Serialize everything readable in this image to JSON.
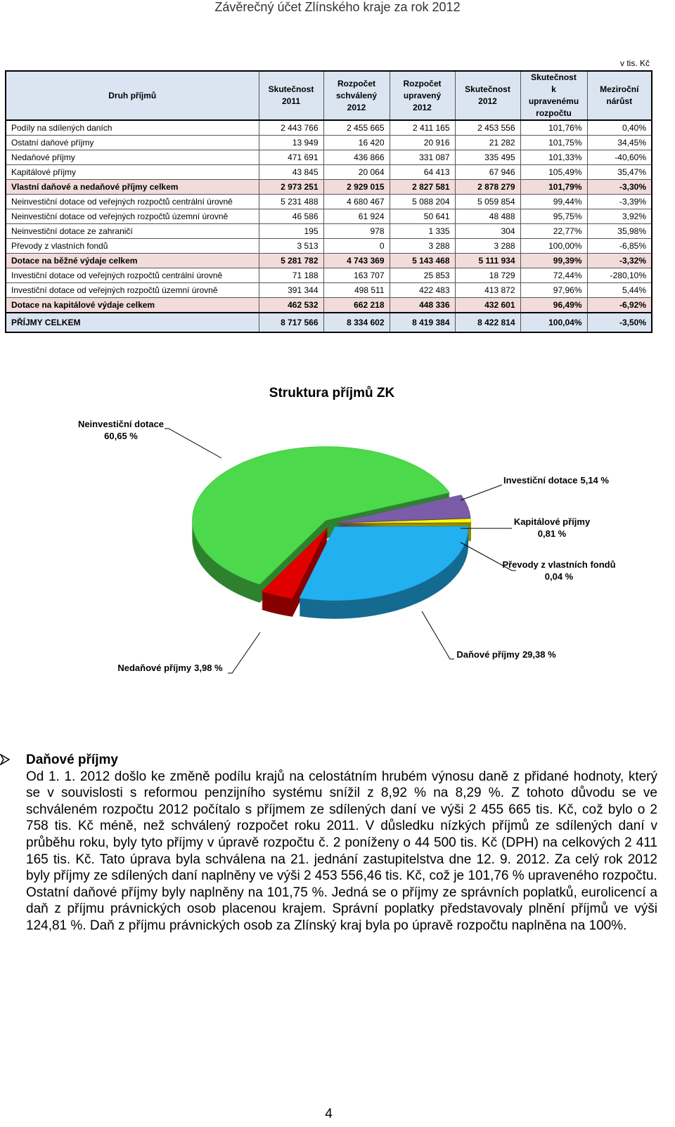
{
  "header": {
    "title": "Závěrečný účet Zlínského kraje za rok 2012"
  },
  "table": {
    "unit": "v tis. Kč",
    "columns": [
      "Druh příjmů",
      "Skutečnost\n2011",
      "Rozpočet\nschválený\n2012",
      "Rozpočet\nupravený\n2012",
      "Skutečnost\n2012",
      "Skutečnost\nk upravenému\nrozpočtu",
      "Meziroční\nnárůst"
    ],
    "rows": [
      {
        "kind": "item",
        "cells": [
          "Podíly na sdílených daních",
          "2 443 766",
          "2 455 665",
          "2 411 165",
          "2 453 556",
          "101,76%",
          "0,40%"
        ]
      },
      {
        "kind": "item",
        "cells": [
          "Ostatní daňové příjmy",
          "13 949",
          "16 420",
          "20 916",
          "21 282",
          "101,75%",
          "34,45%"
        ]
      },
      {
        "kind": "item",
        "cells": [
          "Nedaňové příjmy",
          "471 691",
          "436 866",
          "331 087",
          "335 495",
          "101,33%",
          "-40,60%"
        ]
      },
      {
        "kind": "item",
        "cells": [
          "Kapitálové příjmy",
          "43 845",
          "20 064",
          "64 413",
          "67 946",
          "105,49%",
          "35,47%"
        ]
      },
      {
        "kind": "subtotal",
        "cells": [
          "Vlastní daňové a nedaňové příjmy celkem",
          "2 973 251",
          "2 929 015",
          "2 827 581",
          "2 878 279",
          "101,79%",
          "-3,30%"
        ]
      },
      {
        "kind": "item",
        "cells": [
          "Neinvestiční dotace od veřejných rozpočtů centrální úrovně",
          "5 231 488",
          "4 680 467",
          "5 088 204",
          "5 059 854",
          "99,44%",
          "-3,39%"
        ]
      },
      {
        "kind": "item",
        "cells": [
          "Neinvestiční dotace od veřejných rozpočtů územní úrovně",
          "46 586",
          "61 924",
          "50 641",
          "48 488",
          "95,75%",
          "3,92%"
        ]
      },
      {
        "kind": "item",
        "cells": [
          "Neinvestiční dotace ze zahraničí",
          "195",
          "978",
          "1 335",
          "304",
          "22,77%",
          "35,98%"
        ]
      },
      {
        "kind": "item",
        "cells": [
          "Převody z vlastních fondů",
          "3 513",
          "0",
          "3 288",
          "3 288",
          "100,00%",
          "-6,85%"
        ]
      },
      {
        "kind": "subtotal",
        "cells": [
          "Dotace na běžné výdaje celkem",
          "5 281 782",
          "4 743 369",
          "5 143 468",
          "5 111 934",
          "99,39%",
          "-3,32%"
        ]
      },
      {
        "kind": "item",
        "cells": [
          "Investiční dotace od veřejných rozpočtů centrální úrovně",
          "71 188",
          "163 707",
          "25 853",
          "18 729",
          "72,44%",
          "-280,10%"
        ]
      },
      {
        "kind": "item",
        "cells": [
          "Investiční dotace od veřejných rozpočtů územní úrovně",
          "391 344",
          "498 511",
          "422 483",
          "413 872",
          "97,96%",
          "5,44%"
        ]
      },
      {
        "kind": "subtotal",
        "cells": [
          "Dotace na kapitálové výdaje celkem",
          "462 532",
          "662 218",
          "448 336",
          "432 601",
          "96,49%",
          "-6,92%"
        ]
      },
      {
        "kind": "total",
        "cells": [
          "PŘÍJMY CELKEM",
          "8 717 566",
          "8 334 602",
          "8 419 384",
          "8 422 814",
          "100,04%",
          "-3,50%"
        ]
      }
    ]
  },
  "chart_data": {
    "type": "pie",
    "title": "Struktura příjmů ZK",
    "categories": [
      "Investiční dotace",
      "Kapitálové příjmy",
      "Převody z vlastních fondů",
      "Daňové příjmy",
      "Nedaňové příjmy",
      "Neinvestiční dotace"
    ],
    "values": [
      5.14,
      0.81,
      0.04,
      29.38,
      3.98,
      60.65
    ],
    "value_labels": [
      "5,14 %",
      "0,81 %",
      "0,04 %",
      "29,38 %",
      "3,98 %",
      "60,65 %"
    ],
    "colors": [
      "#7a5ca8",
      "#ffff00",
      "#6b3d1c",
      "#22b0f0",
      "#e00000",
      "#4cd94c"
    ]
  },
  "section": {
    "heading": "Daňové příjmy",
    "paragraphs": [
      "Od 1. 1. 2012 došlo ke změně podílu krajů na celostátním hrubém výnosu daně z přidané hodnoty, který se v souvislosti s reformou penzijního systému snížil z 8,92 % na 8,29 %. Z tohoto důvodu se ve schváleném rozpočtu 2012 počítalo s příjmem ze sdílených daní ve výši 2 455 665 tis. Kč, což bylo o 2 758 tis. Kč méně, než schválený rozpočet roku 2011. V důsledku nízkých příjmů ze sdílených daní v průběhu roku, byly tyto příjmy v úpravě rozpočtu č. 2 poníženy o 44 500 tis. Kč (DPH) na celkových 2 411 165 tis. Kč. Tato úprava byla schválena na 21. jednání zastupitelstva dne 12. 9. 2012. Za celý rok 2012 byly příjmy ze sdílených daní naplněny ve výši 2 453 556,46 tis. Kč, což je 101,76 % upraveného rozpočtu.",
      "Ostatní daňové příjmy byly naplněny na 101,75 %. Jedná se o příjmy ze správních poplatků, eurolicencí a daň z příjmu právnických osob placenou krajem. Správní poplatky představovaly plnění příjmů ve výši 124,81 %. Daň z příjmu právnických osob za Zlínský kraj byla po úpravě rozpočtu naplněna na 100%."
    ]
  },
  "footer": {
    "page": "4"
  }
}
